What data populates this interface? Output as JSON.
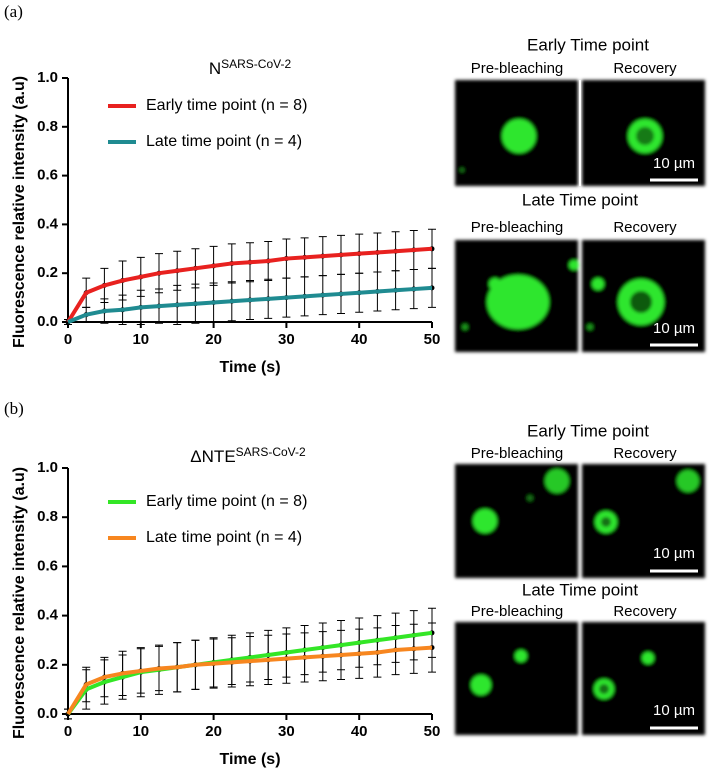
{
  "chart_data": [
    {
      "type": "line",
      "title": "N",
      "title_superscript": "SARS-CoV-2",
      "xlabel": "Time (s)",
      "ylabel": "Fluorescence relative intensity (a.u)",
      "xlim": [
        0,
        50
      ],
      "ylim": [
        0,
        1
      ],
      "xticks": [
        0,
        10,
        20,
        30,
        40,
        50
      ],
      "yticks": [
        {
          "value": 0,
          "label": "0.0"
        },
        0.2,
        0.4,
        0.6,
        0.8,
        {
          "value": 1,
          "label": "1.0"
        }
      ],
      "legend": "upper left",
      "x": [
        0,
        2.5,
        5,
        7.5,
        10,
        12.5,
        15,
        17.5,
        20,
        22.5,
        25,
        27.5,
        30,
        32.5,
        35,
        37.5,
        40,
        42.5,
        45,
        47.5,
        50
      ],
      "series": [
        {
          "name": "Early time point (n = 8)",
          "color": "#e8211f",
          "values": [
            0,
            0.12,
            0.15,
            0.17,
            0.185,
            0.2,
            0.21,
            0.22,
            0.23,
            0.24,
            0.245,
            0.25,
            0.26,
            0.265,
            0.27,
            0.275,
            0.28,
            0.285,
            0.29,
            0.295,
            0.3
          ],
          "errors": [
            0.01,
            0.06,
            0.07,
            0.08,
            0.08,
            0.08,
            0.08,
            0.08,
            0.08,
            0.08,
            0.08,
            0.08,
            0.08,
            0.08,
            0.08,
            0.08,
            0.08,
            0.08,
            0.08,
            0.08,
            0.08
          ]
        },
        {
          "name": "Late time point (n = 4)",
          "color": "#1f8b91",
          "values": [
            0,
            0.03,
            0.045,
            0.05,
            0.06,
            0.065,
            0.07,
            0.075,
            0.08,
            0.085,
            0.09,
            0.095,
            0.1,
            0.105,
            0.11,
            0.115,
            0.12,
            0.125,
            0.13,
            0.135,
            0.14
          ],
          "errors": [
            0.01,
            0.03,
            0.05,
            0.06,
            0.07,
            0.07,
            0.08,
            0.08,
            0.08,
            0.08,
            0.08,
            0.08,
            0.08,
            0.08,
            0.08,
            0.08,
            0.08,
            0.08,
            0.08,
            0.08,
            0.08
          ]
        }
      ]
    },
    {
      "type": "line",
      "title": "ΔNTE",
      "title_superscript": "SARS-CoV-2",
      "xlabel": "Time (s)",
      "ylabel": "Fluorescence relative intensity (a.u)",
      "xlim": [
        0,
        50
      ],
      "ylim": [
        0,
        1
      ],
      "xticks": [
        0,
        10,
        20,
        30,
        40,
        50
      ],
      "yticks": [
        {
          "value": 0,
          "label": "0.0"
        },
        0.2,
        0.4,
        0.6,
        0.8,
        {
          "value": 1,
          "label": "1.0"
        }
      ],
      "legend": "upper left",
      "x": [
        0,
        2.5,
        5,
        7.5,
        10,
        12.5,
        15,
        17.5,
        20,
        22.5,
        25,
        27.5,
        30,
        32.5,
        35,
        37.5,
        40,
        42.5,
        45,
        47.5,
        50
      ],
      "series": [
        {
          "name": "Early time point (n = 8)",
          "color": "#33e626",
          "values": [
            0,
            0.1,
            0.13,
            0.15,
            0.17,
            0.18,
            0.19,
            0.2,
            0.21,
            0.22,
            0.23,
            0.24,
            0.25,
            0.26,
            0.27,
            0.28,
            0.29,
            0.3,
            0.31,
            0.32,
            0.33
          ],
          "errors": [
            0.02,
            0.08,
            0.09,
            0.09,
            0.1,
            0.1,
            0.1,
            0.1,
            0.1,
            0.1,
            0.1,
            0.1,
            0.1,
            0.1,
            0.1,
            0.1,
            0.1,
            0.1,
            0.1,
            0.1,
            0.1
          ]
        },
        {
          "name": "Late time point (n = 4)",
          "color": "#f7861f",
          "values": [
            0,
            0.12,
            0.15,
            0.165,
            0.175,
            0.185,
            0.19,
            0.2,
            0.205,
            0.21,
            0.215,
            0.22,
            0.225,
            0.23,
            0.235,
            0.24,
            0.245,
            0.25,
            0.26,
            0.265,
            0.27
          ],
          "errors": [
            0.02,
            0.07,
            0.08,
            0.09,
            0.09,
            0.09,
            0.1,
            0.1,
            0.1,
            0.1,
            0.1,
            0.1,
            0.1,
            0.1,
            0.1,
            0.1,
            0.1,
            0.1,
            0.1,
            0.1,
            0.1
          ]
        }
      ]
    }
  ],
  "figure": {
    "panels": [
      {
        "label": "(a)",
        "groups": [
          {
            "title": "Early Time point",
            "left": "Pre-bleaching",
            "right": "Recovery",
            "scale": "10 µm"
          },
          {
            "title": "Late Time point",
            "left": "Pre-bleaching",
            "right": "Recovery",
            "scale": "10 µm"
          }
        ]
      },
      {
        "label": "(b)",
        "groups": [
          {
            "title": "Early Time point",
            "left": "Pre-bleaching",
            "right": "Recovery",
            "scale": "10 µm"
          },
          {
            "title": "Late Time point",
            "left": "Pre-bleaching",
            "right": "Recovery",
            "scale": "10 µm"
          }
        ]
      }
    ]
  }
}
